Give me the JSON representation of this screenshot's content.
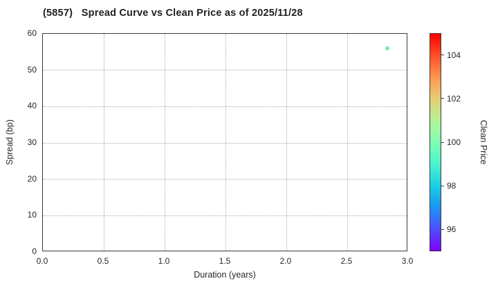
{
  "chart_data": {
    "type": "scatter",
    "title": "(5857)   Spread Curve vs Clean Price as of 2025/11/28",
    "xlabel": "Duration (years)",
    "ylabel": "Spread (bp)",
    "xlim": [
      0.0,
      3.0
    ],
    "ylim": [
      0,
      60
    ],
    "xticks": [
      "0.0",
      "0.5",
      "1.0",
      "1.5",
      "2.0",
      "2.5",
      "3.0"
    ],
    "xtick_values": [
      0,
      0.5,
      1,
      1.5,
      2,
      2.5,
      3
    ],
    "yticks": [
      "0",
      "10",
      "20",
      "30",
      "40",
      "50",
      "60"
    ],
    "ytick_values": [
      0,
      10,
      20,
      30,
      40,
      50,
      60
    ],
    "grid": "dotted",
    "legend_position": "none",
    "points": [
      {
        "x": 2.83,
        "y": 56.0,
        "clean_price_est": 99.8,
        "color": "#72efa8"
      }
    ],
    "colorbar": {
      "label": "Clean Price",
      "range": [
        95,
        105
      ],
      "ticks": [
        "96",
        "98",
        "100",
        "102",
        "104"
      ],
      "tick_values": [
        96,
        98,
        100,
        102,
        104
      ],
      "colormap": "rainbow",
      "gradient_top_to_bottom": [
        "#ff0000",
        "#ff4f28",
        "#ff964f",
        "#e6ce74",
        "#b3f396",
        "#80ffb4",
        "#4df3ce",
        "#1acee3",
        "#1a96f3",
        "#4d4ffc",
        "#8000ff"
      ]
    },
    "colors": {
      "text": "#262626",
      "grid": "#ababab",
      "frame": "#3a3a3a",
      "background": "#ffffff"
    }
  }
}
